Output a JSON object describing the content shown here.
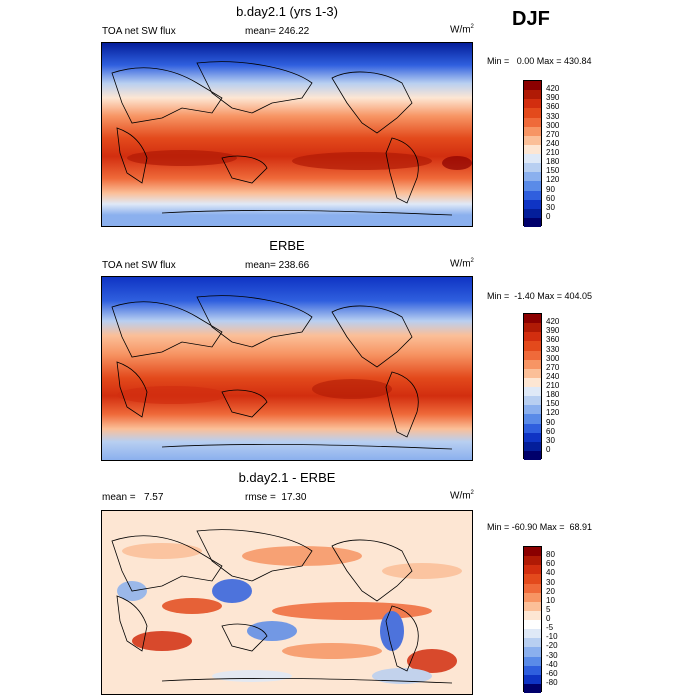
{
  "season": "DJF",
  "panels": [
    {
      "title": "b.day2.1 (yrs 1-3)",
      "left_label": "TOA net SW flux",
      "center_label": "mean= 246.22",
      "units": "W/m",
      "units_sup": "2",
      "minmax": "Min =   0.00 Max = 430.84",
      "cbar_labels": [
        "420",
        "390",
        "360",
        "330",
        "300",
        "270",
        "240",
        "210",
        "180",
        "150",
        "120",
        "90",
        "60",
        "30",
        "0"
      ]
    },
    {
      "title": "ERBE",
      "left_label": "TOA net SW flux",
      "center_label": "mean= 238.66",
      "units": "W/m",
      "units_sup": "2",
      "minmax": "Min =  -1.40 Max = 404.05",
      "cbar_labels": [
        "420",
        "390",
        "360",
        "330",
        "300",
        "270",
        "240",
        "210",
        "180",
        "150",
        "120",
        "90",
        "60",
        "30",
        "0"
      ]
    },
    {
      "title": "b.day2.1 - ERBE",
      "left_label": "mean =   7.57",
      "center_label": "rmse =  17.30",
      "units": "W/m",
      "units_sup": "2",
      "minmax": "Min = -60.90 Max =  68.91",
      "cbar_labels": [
        "80",
        "60",
        "40",
        "30",
        "20",
        "10",
        "5",
        "0",
        "-5",
        "-10",
        "-20",
        "-30",
        "-40",
        "-60",
        "-80"
      ]
    }
  ],
  "colors": {
    "flux_scale": [
      "#8b0000",
      "#b01a05",
      "#d22e0f",
      "#e34a1c",
      "#ef6a3a",
      "#f79564",
      "#fbbf98",
      "#fde6d3",
      "#dfe9f7",
      "#b8cff1",
      "#8bb0ee",
      "#5a8be8",
      "#2f5fde",
      "#0f34c4",
      "#041e9a",
      "#00006b"
    ],
    "diff_scale": [
      "#8b0000",
      "#b01a05",
      "#d22e0f",
      "#e34a1c",
      "#ef6a3a",
      "#f79564",
      "#fbbf98",
      "#fde6d3",
      "#ffffff",
      "#dfe9f7",
      "#b8cff1",
      "#8bb0ee",
      "#5a8be8",
      "#2f5fde",
      "#0f34c4",
      "#00006b"
    ]
  }
}
